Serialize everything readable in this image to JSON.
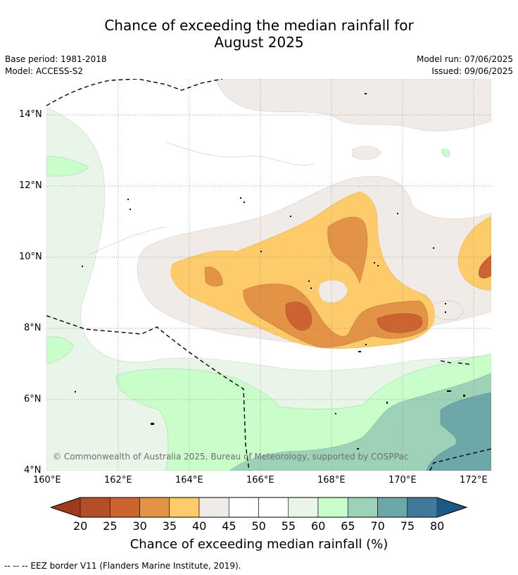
{
  "title_line1": "Chance of exceeding the median rainfall for",
  "title_line2": "August 2025",
  "base_period": "Base period: 1981-2018",
  "model": "Model: ACCESS-S2",
  "model_run": "Model run: 07/06/2025",
  "issued": "Issued: 09/06/2025",
  "copyright": "© Commonwealth of Australia 2025, Bureau of Meteorology, supported by COSPPac",
  "y_ticks": [
    "14°N",
    "12°N",
    "10°N",
    "8°N",
    "6°N",
    "4°N"
  ],
  "x_ticks": [
    "160°E",
    "162°E",
    "164°E",
    "166°E",
    "168°E",
    "170°E",
    "172°E"
  ],
  "colorbar": {
    "label": "Chance of exceeding median rainfall (%)",
    "ticks": [
      "20",
      "25",
      "30",
      "35",
      "40",
      "45",
      "50",
      "55",
      "60",
      "65",
      "70",
      "75",
      "80"
    ],
    "colors": [
      "#9e3a1f",
      "#b34e27",
      "#cd6330",
      "#e29345",
      "#fecb6a",
      "#f0ebe6",
      "#ffffff",
      "#ffffff",
      "#eaf5ea",
      "#c9fdc9",
      "#9dd2b9",
      "#6ea7a7",
      "#41799a",
      "#1b5a86"
    ]
  },
  "footer": "--  --  -- EEZ border V11 (Flanders Marine Institute, 2019)."
}
